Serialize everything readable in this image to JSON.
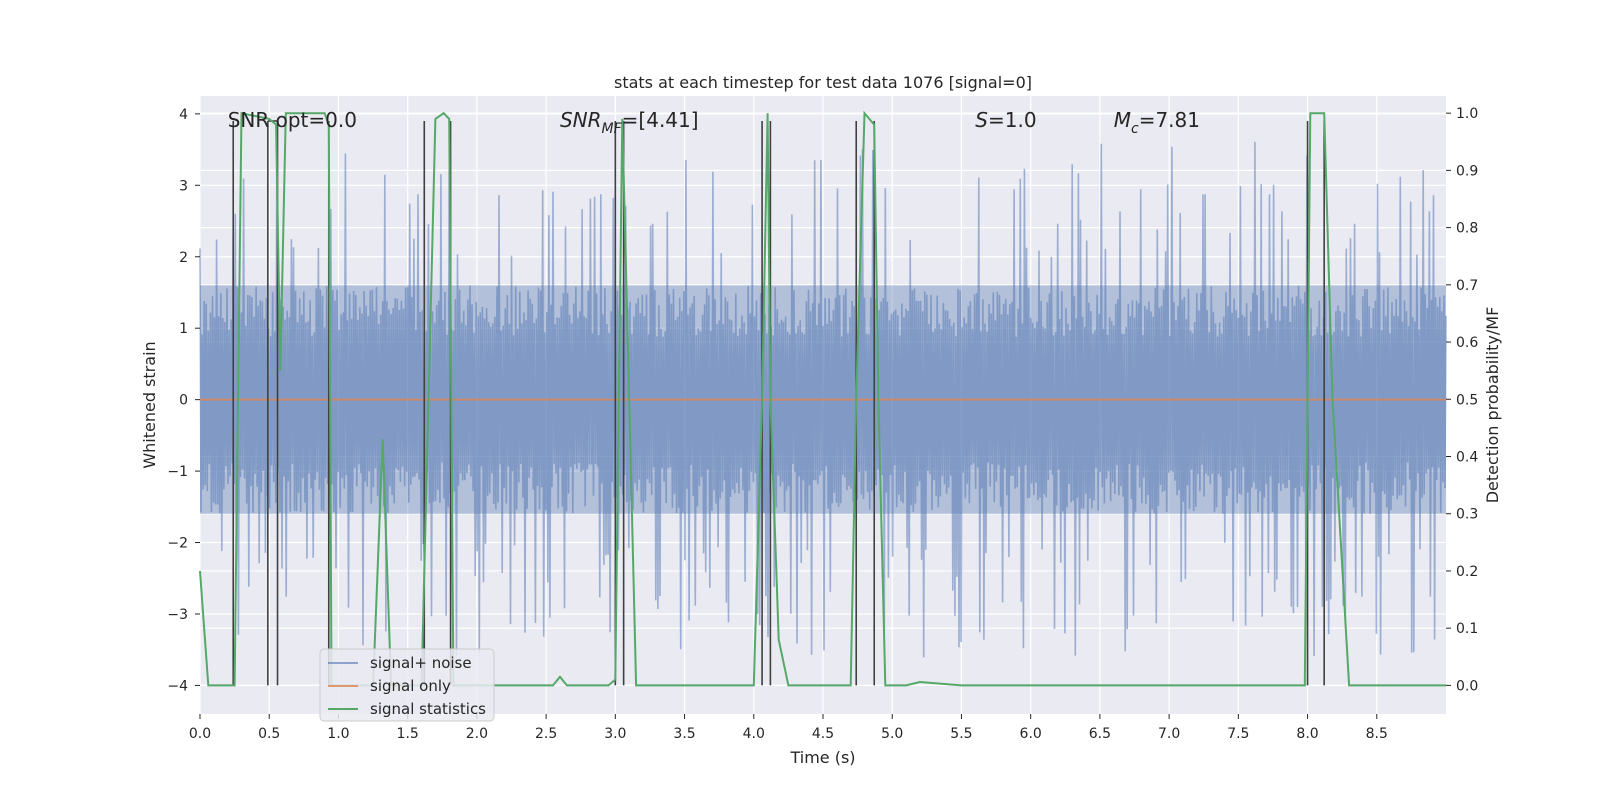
{
  "chart_data": {
    "type": "line",
    "title": "stats at each timestep for test data 1076 [signal=0]",
    "xlabel": "Time (s)",
    "ylabel_left": "Whitened strain",
    "ylabel_right": "Detection probability/MF",
    "xlim": [
      0.0,
      9.0
    ],
    "ylim_left": [
      -4.4,
      4.25
    ],
    "ylim_right": [
      -0.05,
      1.03
    ],
    "x_ticks": [
      0.0,
      0.5,
      1.0,
      1.5,
      2.0,
      2.5,
      3.0,
      3.5,
      4.0,
      4.5,
      5.0,
      5.5,
      6.0,
      6.5,
      7.0,
      7.5,
      8.0,
      8.5
    ],
    "x_tick_labels": [
      "0.0",
      "0.5",
      "1.0",
      "1.5",
      "2.0",
      "2.5",
      "3.0",
      "3.5",
      "4.0",
      "4.5",
      "5.0",
      "5.5",
      "6.0",
      "6.5",
      "7.0",
      "7.5",
      "8.0",
      "8.5"
    ],
    "y_left_ticks": [
      -4,
      -3,
      -2,
      -1,
      0,
      1,
      2,
      3,
      4
    ],
    "y_left_tick_labels": [
      "−4",
      "−3",
      "−2",
      "−1",
      "0",
      "1",
      "2",
      "3",
      "4"
    ],
    "y_right_ticks": [
      0.0,
      0.1,
      0.2,
      0.3,
      0.4,
      0.5,
      0.6,
      0.7,
      0.8,
      0.9,
      1.0
    ],
    "y_right_tick_labels": [
      "0.0",
      "0.1",
      "0.2",
      "0.3",
      "0.4",
      "0.5",
      "0.6",
      "0.7",
      "0.8",
      "0.9",
      "1.0"
    ],
    "annotations": [
      {
        "text": "SNR_opt=0.0",
        "x": 0.2,
        "y": 3.9
      },
      {
        "text": "SNR_MF=[4.41]",
        "x": 2.6,
        "y": 3.9
      },
      {
        "text": "S=1.0",
        "x": 5.6,
        "y": 3.9
      },
      {
        "text": "M_c=7.81",
        "x": 6.6,
        "y": 3.9
      }
    ],
    "series": [
      {
        "name": "signal+ noise",
        "color": "#4c72b0",
        "alpha": 0.5,
        "noise_band_left": [
          -1.6,
          1.6
        ],
        "peak_range": [
          2.0,
          3.9
        ],
        "sample_count": 600
      },
      {
        "name": "signal only",
        "color": "#dd8452",
        "constant": 0.0
      },
      {
        "name": "signal statistics",
        "color": "#55a868",
        "x": [
          0.0,
          0.06,
          0.15,
          0.25,
          0.3,
          0.5,
          0.55,
          0.58,
          0.62,
          0.9,
          0.93,
          0.95,
          1.25,
          1.32,
          1.38,
          1.45,
          1.6,
          1.7,
          1.76,
          1.8,
          1.83,
          1.9,
          2.0,
          2.4,
          2.55,
          2.6,
          2.65,
          2.95,
          3.0,
          3.05,
          3.1,
          3.15,
          3.2,
          3.5,
          4.0,
          4.06,
          4.1,
          4.12,
          4.18,
          4.25,
          4.7,
          4.74,
          4.8,
          4.87,
          4.9,
          4.95,
          5.1,
          5.2,
          5.5,
          7.0,
          7.98,
          8.02,
          8.08,
          8.12,
          8.18,
          8.3,
          9.0
        ],
        "values": [
          0.2,
          0.0,
          0.0,
          0.0,
          1.0,
          0.99,
          0.98,
          0.55,
          1.0,
          1.0,
          0.98,
          0.0,
          0.0,
          0.43,
          0.0,
          0.0,
          0.0,
          0.99,
          1.0,
          0.99,
          0.0,
          0.0,
          0.0,
          0.0,
          0.0,
          0.015,
          0.0,
          0.0,
          0.01,
          0.99,
          0.5,
          0.0,
          0.0,
          0.0,
          0.0,
          0.5,
          1.0,
          0.5,
          0.08,
          0.0,
          0.0,
          0.5,
          1.0,
          0.98,
          0.5,
          0.0,
          0.0,
          0.006,
          0.0,
          0.0,
          0.0,
          1.0,
          1.0,
          1.0,
          0.5,
          0.0,
          0.0
        ]
      }
    ],
    "event_lines_x": [
      0.24,
      0.49,
      0.56,
      0.93,
      1.62,
      1.81,
      3.0,
      3.06,
      4.06,
      4.12,
      4.74,
      4.87,
      8.0,
      8.12
    ],
    "event_lines_top_left": 3.9,
    "event_lines_bottom_left": -4.0,
    "event_lines_color": "#404040",
    "legend": {
      "placement": "lower-left",
      "entries": [
        "signal+ noise",
        "signal only",
        "signal statistics"
      ]
    }
  }
}
